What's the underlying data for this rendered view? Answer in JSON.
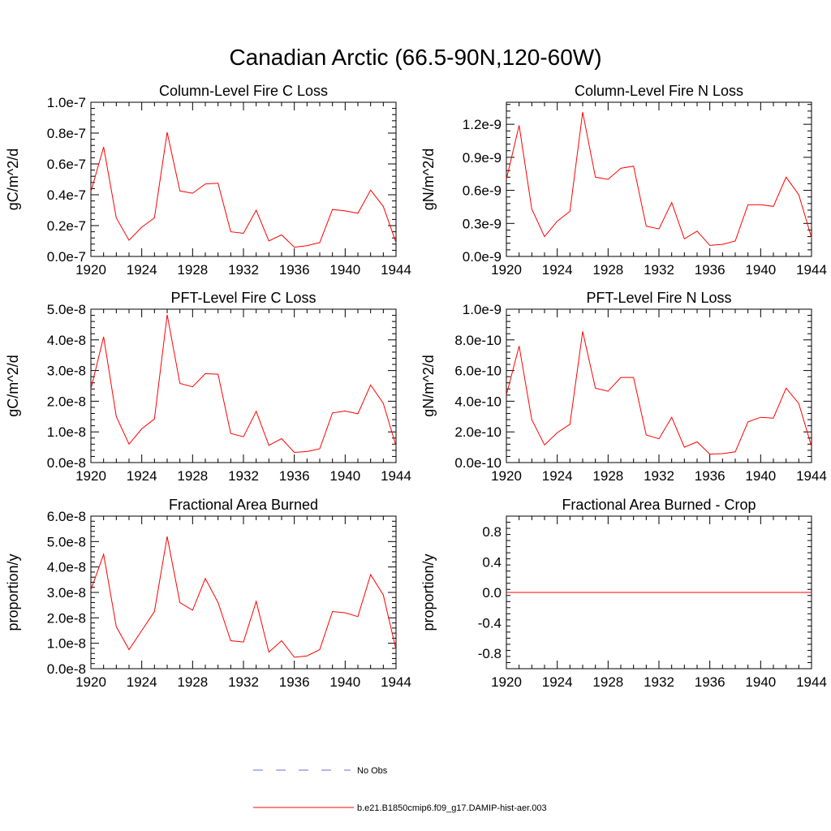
{
  "figure": {
    "title": "Canadian Arctic (66.5-90N,120-60W)",
    "legend": {
      "obs_label": "No Obs",
      "obs_color": "#6670c8",
      "model_label": "b.e21.B1850cmip6.f09_g17.DAMIP-hist-aer.003",
      "model_color": "#ff0000"
    }
  },
  "chart_data": [
    {
      "type": "line",
      "title": "Column-Level Fire C Loss",
      "ylabel": "gC/m^2/d",
      "xlim": [
        1920,
        1944
      ],
      "ylim": [
        0,
        1e-07
      ],
      "yticks": [
        0,
        2e-08,
        4e-08,
        6e-08,
        8e-08,
        1e-07
      ],
      "ytick_labels": [
        "0.0e-7",
        "0.2e-7",
        "0.4e-7",
        "0.6e-7",
        "0.8e-7",
        "1.0e-7"
      ],
      "xticks": [
        1920,
        1924,
        1928,
        1932,
        1936,
        1940,
        1944
      ],
      "xtick_labels": [
        "1920",
        "1924",
        "1928",
        "1932",
        "1936",
        "1940",
        "1944"
      ],
      "series": [
        {
          "color": "#ff0000",
          "x": [
            1920,
            1921,
            1922,
            1923,
            1924,
            1925,
            1926,
            1927,
            1928,
            1929,
            1930,
            1931,
            1932,
            1933,
            1934,
            1935,
            1936,
            1937,
            1938,
            1939,
            1940,
            1941,
            1942,
            1943,
            1944
          ],
          "values": [
            4.2e-08,
            7.1e-08,
            2.5e-08,
            1.05e-08,
            1.9e-08,
            2.5e-08,
            8.05e-08,
            4.25e-08,
            4.1e-08,
            4.7e-08,
            4.75e-08,
            1.6e-08,
            1.5e-08,
            3e-08,
            1e-08,
            1.4e-08,
            6e-09,
            7e-09,
            9e-09,
            3.05e-08,
            2.95e-08,
            2.8e-08,
            4.3e-08,
            3.25e-08,
            9e-09
          ]
        }
      ]
    },
    {
      "type": "line",
      "title": "Column-Level Fire N Loss",
      "ylabel": "gN/m^2/d",
      "xlim": [
        1920,
        1944
      ],
      "ylim": [
        0,
        1.4e-09
      ],
      "yticks": [
        0,
        3e-10,
        6e-10,
        9e-10,
        1.2e-09
      ],
      "ytick_labels": [
        "0.0e-9",
        "0.3e-9",
        "0.6e-9",
        "0.9e-9",
        "1.2e-9"
      ],
      "xticks": [
        1920,
        1924,
        1928,
        1932,
        1936,
        1940,
        1944
      ],
      "xtick_labels": [
        "1920",
        "1924",
        "1928",
        "1932",
        "1936",
        "1940",
        "1944"
      ],
      "series": [
        {
          "color": "#ff0000",
          "x": [
            1920,
            1921,
            1922,
            1923,
            1924,
            1925,
            1926,
            1927,
            1928,
            1929,
            1930,
            1931,
            1932,
            1933,
            1934,
            1935,
            1936,
            1937,
            1938,
            1939,
            1940,
            1941,
            1942,
            1943,
            1944
          ],
          "values": [
            7e-10,
            1.19e-09,
            4.3e-10,
            1.8e-10,
            3.2e-10,
            4.1e-10,
            1.31e-09,
            7.2e-10,
            7e-10,
            8e-10,
            8.2e-10,
            2.75e-10,
            2.5e-10,
            4.9e-10,
            1.6e-10,
            2.3e-10,
            1e-10,
            1.1e-10,
            1.4e-10,
            4.7e-10,
            4.7e-10,
            4.55e-10,
            7.2e-10,
            5.6e-10,
            1.7e-10
          ]
        }
      ]
    },
    {
      "type": "line",
      "title": "PFT-Level Fire C Loss",
      "ylabel": "gC/m^2/d",
      "xlim": [
        1920,
        1944
      ],
      "ylim": [
        0,
        5e-08
      ],
      "yticks": [
        0,
        1e-08,
        2e-08,
        3e-08,
        4e-08,
        5e-08
      ],
      "ytick_labels": [
        "0.0e-8",
        "1.0e-8",
        "2.0e-8",
        "3.0e-8",
        "4.0e-8",
        "5.0e-8"
      ],
      "xticks": [
        1920,
        1924,
        1928,
        1932,
        1936,
        1940,
        1944
      ],
      "xtick_labels": [
        "1920",
        "1924",
        "1928",
        "1932",
        "1936",
        "1940",
        "1944"
      ],
      "series": [
        {
          "color": "#ff0000",
          "x": [
            1920,
            1921,
            1922,
            1923,
            1924,
            1925,
            1926,
            1927,
            1928,
            1929,
            1930,
            1931,
            1932,
            1933,
            1934,
            1935,
            1936,
            1937,
            1938,
            1939,
            1940,
            1941,
            1942,
            1943,
            1944
          ],
          "values": [
            2.4e-08,
            4.1e-08,
            1.5e-08,
            6e-09,
            1.1e-08,
            1.42e-08,
            4.82e-08,
            2.58e-08,
            2.47e-08,
            2.9e-08,
            2.88e-08,
            9.5e-09,
            8.4e-09,
            1.67e-08,
            5.6e-09,
            7.8e-09,
            3.3e-09,
            3.6e-09,
            4.5e-09,
            1.62e-08,
            1.68e-08,
            1.59e-08,
            2.53e-08,
            1.93e-08,
            5.4e-09
          ]
        }
      ]
    },
    {
      "type": "line",
      "title": "PFT-Level Fire N Loss",
      "ylabel": "gN/m^2/d",
      "xlim": [
        1920,
        1944
      ],
      "ylim": [
        0,
        1e-09
      ],
      "yticks": [
        0,
        2e-10,
        4e-10,
        6e-10,
        8e-10,
        1e-09
      ],
      "ytick_labels": [
        "0.0e-10",
        "2.0e-10",
        "4.0e-10",
        "6.0e-10",
        "8.0e-10",
        "1.0e-9"
      ],
      "xticks": [
        1920,
        1924,
        1928,
        1932,
        1936,
        1940,
        1944
      ],
      "xtick_labels": [
        "1920",
        "1924",
        "1928",
        "1932",
        "1936",
        "1940",
        "1944"
      ],
      "series": [
        {
          "color": "#ff0000",
          "x": [
            1920,
            1921,
            1922,
            1923,
            1924,
            1925,
            1926,
            1927,
            1928,
            1929,
            1930,
            1931,
            1932,
            1933,
            1934,
            1935,
            1936,
            1937,
            1938,
            1939,
            1940,
            1941,
            1942,
            1943,
            1944
          ],
          "values": [
            4.4e-10,
            7.6e-10,
            2.8e-10,
            1.15e-10,
            1.95e-10,
            2.5e-10,
            8.55e-10,
            4.85e-10,
            4.65e-10,
            5.55e-10,
            5.55e-10,
            1.8e-10,
            1.55e-10,
            2.95e-10,
            1e-10,
            1.35e-10,
            5.5e-11,
            5.8e-11,
            7e-11,
            2.65e-10,
            2.95e-10,
            2.9e-10,
            4.85e-10,
            3.85e-10,
            1.05e-10
          ]
        }
      ]
    },
    {
      "type": "line",
      "title": "Fractional Area Burned",
      "ylabel": "proportion/y",
      "xlim": [
        1920,
        1944
      ],
      "ylim": [
        0,
        6e-08
      ],
      "yticks": [
        0,
        1e-08,
        2e-08,
        3e-08,
        4e-08,
        5e-08,
        6e-08
      ],
      "ytick_labels": [
        "0.0e-8",
        "1.0e-8",
        "2.0e-8",
        "3.0e-8",
        "4.0e-8",
        "5.0e-8",
        "6.0e-8"
      ],
      "xticks": [
        1920,
        1924,
        1928,
        1932,
        1936,
        1940,
        1944
      ],
      "xtick_labels": [
        "1920",
        "1924",
        "1928",
        "1932",
        "1936",
        "1940",
        "1944"
      ],
      "series": [
        {
          "color": "#ff0000",
          "x": [
            1920,
            1921,
            1922,
            1923,
            1924,
            1925,
            1926,
            1927,
            1928,
            1929,
            1930,
            1931,
            1932,
            1933,
            1934,
            1935,
            1936,
            1937,
            1938,
            1939,
            1940,
            1941,
            1942,
            1943,
            1944
          ],
          "values": [
            3.1e-08,
            4.5e-08,
            1.65e-08,
            7.5e-09,
            1.5e-08,
            2.25e-08,
            5.2e-08,
            2.6e-08,
            2.3e-08,
            3.55e-08,
            2.6e-08,
            1.1e-08,
            1.05e-08,
            2.65e-08,
            6.5e-09,
            1.1e-08,
            4.5e-09,
            5e-09,
            7.5e-09,
            2.25e-08,
            2.2e-08,
            2.05e-08,
            3.7e-08,
            2.9e-08,
            7.5e-09
          ]
        }
      ]
    },
    {
      "type": "line",
      "title": "Fractional Area Burned - Crop",
      "ylabel": "proportion/y",
      "xlim": [
        1920,
        1944
      ],
      "ylim": [
        -1.0,
        1.0
      ],
      "yticks": [
        -0.8,
        -0.4,
        0.0,
        0.4,
        0.8
      ],
      "ytick_labels": [
        "-0.8",
        "-0.4",
        "0.0",
        "0.4",
        "0.8"
      ],
      "xticks": [
        1920,
        1924,
        1928,
        1932,
        1936,
        1940,
        1944
      ],
      "xtick_labels": [
        "1920",
        "1924",
        "1928",
        "1932",
        "1936",
        "1940",
        "1944"
      ],
      "series": [
        {
          "color": "#ff0000",
          "x": [
            1920,
            1921,
            1922,
            1923,
            1924,
            1925,
            1926,
            1927,
            1928,
            1929,
            1930,
            1931,
            1932,
            1933,
            1934,
            1935,
            1936,
            1937,
            1938,
            1939,
            1940,
            1941,
            1942,
            1943,
            1944
          ],
          "values": [
            0,
            0,
            0,
            0,
            0,
            0,
            0,
            0,
            0,
            0,
            0,
            0,
            0,
            0,
            0,
            0,
            0,
            0,
            0,
            0,
            0,
            0,
            0,
            0,
            0
          ]
        }
      ]
    }
  ]
}
